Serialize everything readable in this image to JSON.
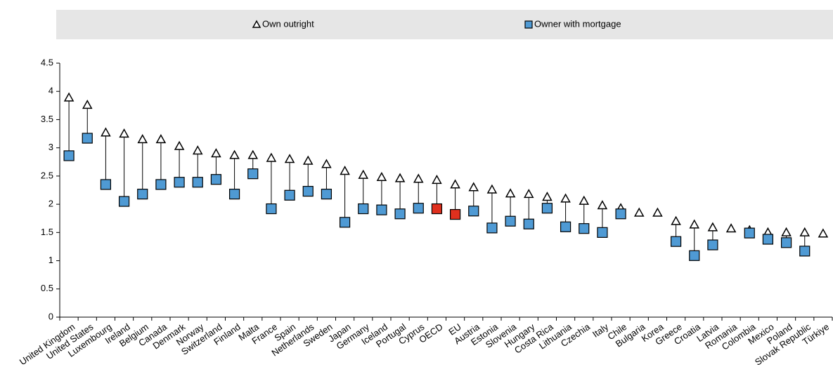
{
  "chart_data": {
    "type": "range-dot",
    "categories": [
      "United Kingdom",
      "United States",
      "Luxembourg",
      "Ireland",
      "Belgium",
      "Canada",
      "Denmark",
      "Norway",
      "Switzerland",
      "Finland",
      "Malta",
      "France",
      "Spain",
      "Netherlands",
      "Sweden",
      "Japan",
      "Germany",
      "Iceland",
      "Portugal",
      "Cyprus",
      "OECD",
      "EU",
      "Austria",
      "Estonia",
      "Slovenia",
      "Hungary",
      "Costa Rica",
      "Lithuania",
      "Czechia",
      "Italy",
      "Chile",
      "Bulgaria",
      "Korea",
      "Greece",
      "Croatia",
      "Latvia",
      "Romania",
      "Colombia",
      "Mexico",
      "Poland",
      "Slovak Republic",
      "Türkiye"
    ],
    "series": [
      {
        "name": "Own outright",
        "marker": "triangle",
        "color": "#ffffff",
        "values": [
          3.89,
          3.76,
          3.27,
          3.25,
          3.15,
          3.15,
          3.03,
          2.95,
          2.9,
          2.87,
          2.87,
          2.82,
          2.8,
          2.77,
          2.71,
          2.59,
          2.52,
          2.48,
          2.46,
          2.45,
          2.43,
          2.35,
          2.3,
          2.26,
          2.19,
          2.18,
          2.13,
          2.1,
          2.06,
          1.98,
          1.93,
          1.85,
          1.85,
          1.7,
          1.64,
          1.59,
          1.57,
          1.54,
          1.5,
          1.5,
          1.5,
          1.48
        ]
      },
      {
        "name": "Owner with mortgage",
        "marker": "square",
        "color": "#4f9ad4",
        "values": [
          2.86,
          3.17,
          2.35,
          2.05,
          2.18,
          2.35,
          2.39,
          2.39,
          2.44,
          2.18,
          2.54,
          1.92,
          2.16,
          2.23,
          2.18,
          1.68,
          1.92,
          1.9,
          1.83,
          1.93,
          1.92,
          1.82,
          1.88,
          1.58,
          1.7,
          1.65,
          1.93,
          1.6,
          1.57,
          1.5,
          1.83,
          null,
          null,
          1.34,
          1.09,
          1.28,
          null,
          1.49,
          1.38,
          1.32,
          1.17,
          null
        ]
      }
    ],
    "highlight_indices": [
      20,
      21
    ],
    "highlight_color": "#e0301e",
    "ylim": [
      0,
      4.5
    ],
    "yticks": [
      0,
      0.5,
      1,
      1.5,
      2,
      2.5,
      3,
      3.5,
      4,
      4.5
    ]
  }
}
